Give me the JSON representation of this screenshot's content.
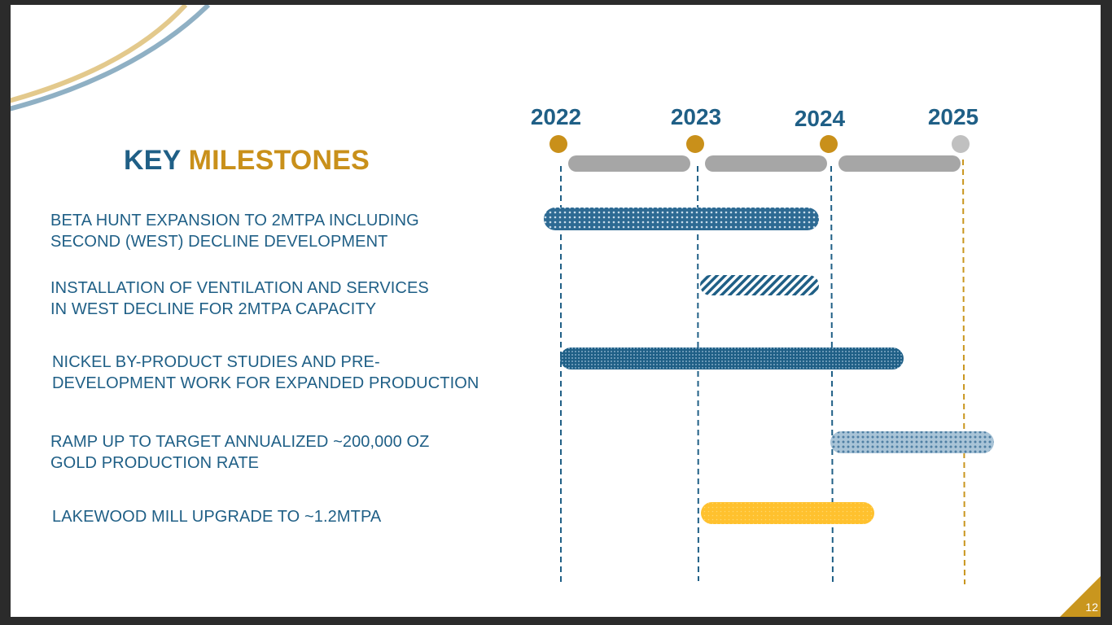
{
  "slide": {
    "title_part1": "KEY",
    "title_part2": "MILESTONES",
    "page_number": "12"
  },
  "colors": {
    "navy": "#1f5f86",
    "gold": "#c9901a",
    "grey_bar": "#a6a6a6",
    "yellow_bar": "#ffc12e",
    "corner": "#c9961e"
  },
  "years": [
    "2022",
    "2023",
    "2024",
    "2025"
  ],
  "milestones": [
    {
      "line1": "BETA HUNT EXPANSION TO 2MTPA INCLUDING",
      "line2": "SECOND (WEST) DECLINE DEVELOPMENT",
      "start": 2022.0,
      "end": 2023.95,
      "pattern": "dots"
    },
    {
      "line1": "INSTALLATION OF VENTILATION AND SERVICES",
      "line2": "IN WEST DECLINE FOR 2MTPA CAPACITY",
      "start": 2023.05,
      "end": 2023.95,
      "pattern": "diagonal"
    },
    {
      "line1": "NICKEL BY-PRODUCT STUDIES AND PRE-",
      "line2": "DEVELOPMENT WORK FOR EXPANDED PRODUCTION",
      "start": 2022.0,
      "end": 2024.55,
      "pattern": "dense-dots"
    },
    {
      "line1": "RAMP UP TO TARGET ANNUALIZED ~200,000 OZ",
      "line2": "GOLD PRODUCTION RATE",
      "start": 2024.0,
      "end": 2025.2,
      "pattern": "light-dots"
    },
    {
      "line1": "LAKEWOOD MILL UPGRADE TO ~1.2MTPA",
      "line2": "",
      "start": 2023.05,
      "end": 2024.3,
      "pattern": "yellow"
    }
  ]
}
